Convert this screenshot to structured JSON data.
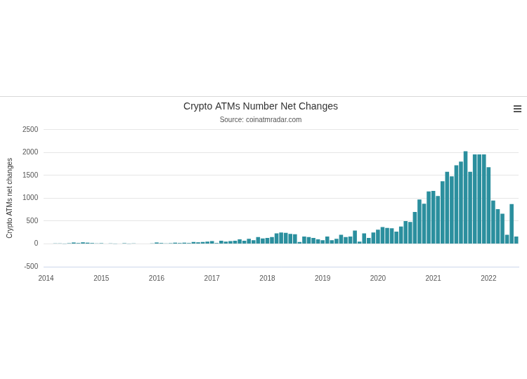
{
  "chart_data": {
    "type": "bar",
    "title": "Crypto ATMs Number Net Changes",
    "subtitle": "Source: coinatmradar.com",
    "y_label": "Crypto ATMs net changes",
    "categories": [
      "2014",
      null,
      null,
      null,
      null,
      null,
      null,
      null,
      null,
      null,
      null,
      null,
      "2015",
      null,
      null,
      null,
      null,
      null,
      null,
      null,
      null,
      null,
      null,
      null,
      "2016",
      null,
      null,
      null,
      null,
      null,
      null,
      null,
      null,
      null,
      null,
      null,
      "2017",
      null,
      null,
      null,
      null,
      null,
      null,
      null,
      null,
      null,
      null,
      null,
      "2018",
      null,
      null,
      null,
      null,
      null,
      null,
      null,
      null,
      null,
      null,
      null,
      "2019",
      null,
      null,
      null,
      null,
      null,
      null,
      null,
      null,
      null,
      null,
      null,
      "2020",
      null,
      null,
      null,
      null,
      null,
      null,
      null,
      null,
      null,
      null,
      null,
      "2021",
      null,
      null,
      null,
      null,
      null,
      null,
      null,
      null,
      null,
      null,
      null,
      "2022",
      null,
      null,
      null,
      null,
      null,
      null
    ],
    "values": [
      0,
      0,
      10,
      10,
      5,
      15,
      30,
      20,
      35,
      25,
      20,
      10,
      15,
      0,
      10,
      5,
      0,
      15,
      5,
      10,
      0,
      0,
      0,
      10,
      30,
      20,
      10,
      15,
      25,
      20,
      25,
      20,
      40,
      35,
      40,
      50,
      60,
      20,
      70,
      50,
      60,
      70,
      100,
      70,
      110,
      80,
      150,
      120,
      130,
      150,
      230,
      250,
      240,
      220,
      210,
      40,
      160,
      150,
      130,
      100,
      80,
      160,
      80,
      110,
      200,
      150,
      160,
      290,
      50,
      230,
      130,
      250,
      310,
      370,
      350,
      340,
      270,
      380,
      500,
      480,
      700,
      970,
      880,
      1150,
      1160,
      1050,
      1370,
      1580,
      1480,
      1720,
      1800,
      2030,
      1580,
      1960,
      1960,
      1960,
      1680,
      950,
      760,
      660,
      200,
      870,
      160
    ],
    "color": "#2b8f9e",
    "ylim": [
      -500,
      2500
    ],
    "yticks": [
      -500,
      0,
      500,
      1000,
      1500,
      2000,
      2500
    ],
    "grid": true
  }
}
